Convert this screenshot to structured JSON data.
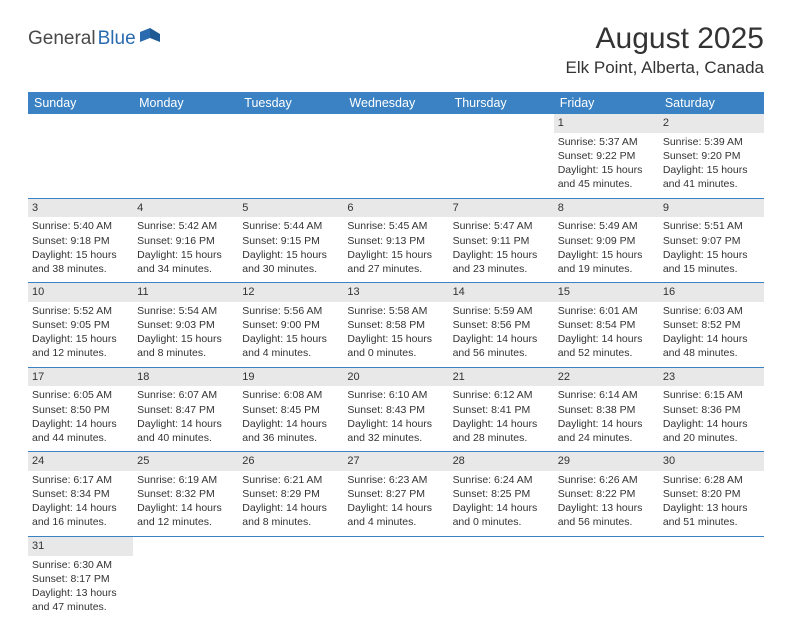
{
  "logo": {
    "part1": "General",
    "part2": "Blue"
  },
  "title": "August 2025",
  "location": "Elk Point, Alberta, Canada",
  "colors": {
    "header_bg": "#3a82c4",
    "header_text": "#ffffff",
    "border": "#3a82c4",
    "shade": "#e8e8e8",
    "text": "#333333",
    "logo_dark": "#4a4a4a",
    "logo_blue": "#2a6bb0"
  },
  "day_headers": [
    "Sunday",
    "Monday",
    "Tuesday",
    "Wednesday",
    "Thursday",
    "Friday",
    "Saturday"
  ],
  "weeks": [
    [
      {
        "day": "",
        "sunrise": "",
        "sunset": "",
        "daylight1": "",
        "daylight2": "",
        "shaded": false
      },
      {
        "day": "",
        "sunrise": "",
        "sunset": "",
        "daylight1": "",
        "daylight2": "",
        "shaded": false
      },
      {
        "day": "",
        "sunrise": "",
        "sunset": "",
        "daylight1": "",
        "daylight2": "",
        "shaded": false
      },
      {
        "day": "",
        "sunrise": "",
        "sunset": "",
        "daylight1": "",
        "daylight2": "",
        "shaded": false
      },
      {
        "day": "",
        "sunrise": "",
        "sunset": "",
        "daylight1": "",
        "daylight2": "",
        "shaded": false
      },
      {
        "day": "1",
        "sunrise": "Sunrise: 5:37 AM",
        "sunset": "Sunset: 9:22 PM",
        "daylight1": "Daylight: 15 hours",
        "daylight2": "and 45 minutes.",
        "shaded": true
      },
      {
        "day": "2",
        "sunrise": "Sunrise: 5:39 AM",
        "sunset": "Sunset: 9:20 PM",
        "daylight1": "Daylight: 15 hours",
        "daylight2": "and 41 minutes.",
        "shaded": true
      }
    ],
    [
      {
        "day": "3",
        "sunrise": "Sunrise: 5:40 AM",
        "sunset": "Sunset: 9:18 PM",
        "daylight1": "Daylight: 15 hours",
        "daylight2": "and 38 minutes.",
        "shaded": true
      },
      {
        "day": "4",
        "sunrise": "Sunrise: 5:42 AM",
        "sunset": "Sunset: 9:16 PM",
        "daylight1": "Daylight: 15 hours",
        "daylight2": "and 34 minutes.",
        "shaded": true
      },
      {
        "day": "5",
        "sunrise": "Sunrise: 5:44 AM",
        "sunset": "Sunset: 9:15 PM",
        "daylight1": "Daylight: 15 hours",
        "daylight2": "and 30 minutes.",
        "shaded": true
      },
      {
        "day": "6",
        "sunrise": "Sunrise: 5:45 AM",
        "sunset": "Sunset: 9:13 PM",
        "daylight1": "Daylight: 15 hours",
        "daylight2": "and 27 minutes.",
        "shaded": true
      },
      {
        "day": "7",
        "sunrise": "Sunrise: 5:47 AM",
        "sunset": "Sunset: 9:11 PM",
        "daylight1": "Daylight: 15 hours",
        "daylight2": "and 23 minutes.",
        "shaded": true
      },
      {
        "day": "8",
        "sunrise": "Sunrise: 5:49 AM",
        "sunset": "Sunset: 9:09 PM",
        "daylight1": "Daylight: 15 hours",
        "daylight2": "and 19 minutes.",
        "shaded": true
      },
      {
        "day": "9",
        "sunrise": "Sunrise: 5:51 AM",
        "sunset": "Sunset: 9:07 PM",
        "daylight1": "Daylight: 15 hours",
        "daylight2": "and 15 minutes.",
        "shaded": true
      }
    ],
    [
      {
        "day": "10",
        "sunrise": "Sunrise: 5:52 AM",
        "sunset": "Sunset: 9:05 PM",
        "daylight1": "Daylight: 15 hours",
        "daylight2": "and 12 minutes.",
        "shaded": true
      },
      {
        "day": "11",
        "sunrise": "Sunrise: 5:54 AM",
        "sunset": "Sunset: 9:03 PM",
        "daylight1": "Daylight: 15 hours",
        "daylight2": "and 8 minutes.",
        "shaded": true
      },
      {
        "day": "12",
        "sunrise": "Sunrise: 5:56 AM",
        "sunset": "Sunset: 9:00 PM",
        "daylight1": "Daylight: 15 hours",
        "daylight2": "and 4 minutes.",
        "shaded": true
      },
      {
        "day": "13",
        "sunrise": "Sunrise: 5:58 AM",
        "sunset": "Sunset: 8:58 PM",
        "daylight1": "Daylight: 15 hours",
        "daylight2": "and 0 minutes.",
        "shaded": true
      },
      {
        "day": "14",
        "sunrise": "Sunrise: 5:59 AM",
        "sunset": "Sunset: 8:56 PM",
        "daylight1": "Daylight: 14 hours",
        "daylight2": "and 56 minutes.",
        "shaded": true
      },
      {
        "day": "15",
        "sunrise": "Sunrise: 6:01 AM",
        "sunset": "Sunset: 8:54 PM",
        "daylight1": "Daylight: 14 hours",
        "daylight2": "and 52 minutes.",
        "shaded": true
      },
      {
        "day": "16",
        "sunrise": "Sunrise: 6:03 AM",
        "sunset": "Sunset: 8:52 PM",
        "daylight1": "Daylight: 14 hours",
        "daylight2": "and 48 minutes.",
        "shaded": true
      }
    ],
    [
      {
        "day": "17",
        "sunrise": "Sunrise: 6:05 AM",
        "sunset": "Sunset: 8:50 PM",
        "daylight1": "Daylight: 14 hours",
        "daylight2": "and 44 minutes.",
        "shaded": true
      },
      {
        "day": "18",
        "sunrise": "Sunrise: 6:07 AM",
        "sunset": "Sunset: 8:47 PM",
        "daylight1": "Daylight: 14 hours",
        "daylight2": "and 40 minutes.",
        "shaded": true
      },
      {
        "day": "19",
        "sunrise": "Sunrise: 6:08 AM",
        "sunset": "Sunset: 8:45 PM",
        "daylight1": "Daylight: 14 hours",
        "daylight2": "and 36 minutes.",
        "shaded": true
      },
      {
        "day": "20",
        "sunrise": "Sunrise: 6:10 AM",
        "sunset": "Sunset: 8:43 PM",
        "daylight1": "Daylight: 14 hours",
        "daylight2": "and 32 minutes.",
        "shaded": true
      },
      {
        "day": "21",
        "sunrise": "Sunrise: 6:12 AM",
        "sunset": "Sunset: 8:41 PM",
        "daylight1": "Daylight: 14 hours",
        "daylight2": "and 28 minutes.",
        "shaded": true
      },
      {
        "day": "22",
        "sunrise": "Sunrise: 6:14 AM",
        "sunset": "Sunset: 8:38 PM",
        "daylight1": "Daylight: 14 hours",
        "daylight2": "and 24 minutes.",
        "shaded": true
      },
      {
        "day": "23",
        "sunrise": "Sunrise: 6:15 AM",
        "sunset": "Sunset: 8:36 PM",
        "daylight1": "Daylight: 14 hours",
        "daylight2": "and 20 minutes.",
        "shaded": true
      }
    ],
    [
      {
        "day": "24",
        "sunrise": "Sunrise: 6:17 AM",
        "sunset": "Sunset: 8:34 PM",
        "daylight1": "Daylight: 14 hours",
        "daylight2": "and 16 minutes.",
        "shaded": true
      },
      {
        "day": "25",
        "sunrise": "Sunrise: 6:19 AM",
        "sunset": "Sunset: 8:32 PM",
        "daylight1": "Daylight: 14 hours",
        "daylight2": "and 12 minutes.",
        "shaded": true
      },
      {
        "day": "26",
        "sunrise": "Sunrise: 6:21 AM",
        "sunset": "Sunset: 8:29 PM",
        "daylight1": "Daylight: 14 hours",
        "daylight2": "and 8 minutes.",
        "shaded": true
      },
      {
        "day": "27",
        "sunrise": "Sunrise: 6:23 AM",
        "sunset": "Sunset: 8:27 PM",
        "daylight1": "Daylight: 14 hours",
        "daylight2": "and 4 minutes.",
        "shaded": true
      },
      {
        "day": "28",
        "sunrise": "Sunrise: 6:24 AM",
        "sunset": "Sunset: 8:25 PM",
        "daylight1": "Daylight: 14 hours",
        "daylight2": "and 0 minutes.",
        "shaded": true
      },
      {
        "day": "29",
        "sunrise": "Sunrise: 6:26 AM",
        "sunset": "Sunset: 8:22 PM",
        "daylight1": "Daylight: 13 hours",
        "daylight2": "and 56 minutes.",
        "shaded": true
      },
      {
        "day": "30",
        "sunrise": "Sunrise: 6:28 AM",
        "sunset": "Sunset: 8:20 PM",
        "daylight1": "Daylight: 13 hours",
        "daylight2": "and 51 minutes.",
        "shaded": true
      }
    ],
    [
      {
        "day": "31",
        "sunrise": "Sunrise: 6:30 AM",
        "sunset": "Sunset: 8:17 PM",
        "daylight1": "Daylight: 13 hours",
        "daylight2": "and 47 minutes.",
        "shaded": true
      },
      {
        "day": "",
        "sunrise": "",
        "sunset": "",
        "daylight1": "",
        "daylight2": "",
        "shaded": false
      },
      {
        "day": "",
        "sunrise": "",
        "sunset": "",
        "daylight1": "",
        "daylight2": "",
        "shaded": false
      },
      {
        "day": "",
        "sunrise": "",
        "sunset": "",
        "daylight1": "",
        "daylight2": "",
        "shaded": false
      },
      {
        "day": "",
        "sunrise": "",
        "sunset": "",
        "daylight1": "",
        "daylight2": "",
        "shaded": false
      },
      {
        "day": "",
        "sunrise": "",
        "sunset": "",
        "daylight1": "",
        "daylight2": "",
        "shaded": false
      },
      {
        "day": "",
        "sunrise": "",
        "sunset": "",
        "daylight1": "",
        "daylight2": "",
        "shaded": false
      }
    ]
  ]
}
